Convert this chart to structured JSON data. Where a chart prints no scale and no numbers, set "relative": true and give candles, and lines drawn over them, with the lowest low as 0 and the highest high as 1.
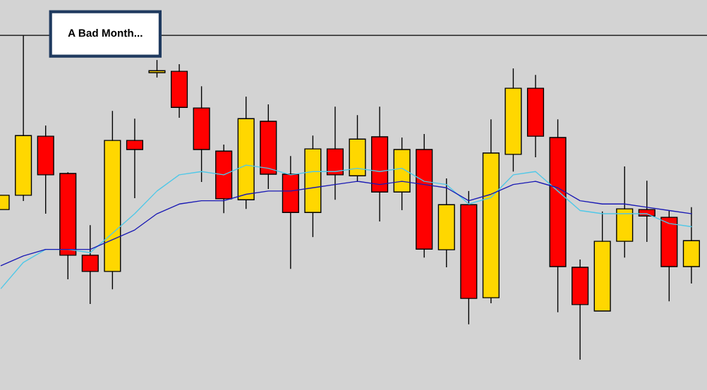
{
  "chart_data": {
    "type": "candlestick",
    "relative": true,
    "categories": [
      null,
      null,
      null,
      null,
      null,
      null,
      null,
      null,
      null,
      null,
      null,
      null,
      null,
      null,
      null,
      null,
      null,
      null,
      null,
      null,
      null,
      null,
      null,
      null,
      null,
      null,
      null,
      null,
      null,
      null,
      null,
      null
    ],
    "ohlc": [
      [
        0.463,
        0.507,
        0.463,
        0.507
      ],
      [
        0.507,
        1.0,
        0.489,
        0.691
      ],
      [
        0.689,
        0.722,
        0.45,
        0.57
      ],
      [
        0.574,
        0.578,
        0.248,
        0.322
      ],
      [
        0.322,
        0.415,
        0.172,
        0.272
      ],
      [
        0.272,
        0.767,
        0.217,
        0.676
      ],
      [
        0.676,
        0.743,
        0.498,
        0.648
      ],
      [
        0.885,
        0.924,
        0.87,
        0.891
      ],
      [
        0.889,
        0.911,
        0.746,
        0.778
      ],
      [
        0.776,
        0.843,
        0.548,
        0.648
      ],
      [
        0.643,
        0.663,
        0.452,
        0.496
      ],
      [
        0.493,
        0.811,
        0.465,
        0.743
      ],
      [
        0.735,
        0.787,
        0.526,
        0.572
      ],
      [
        0.572,
        0.628,
        0.28,
        0.454
      ],
      [
        0.454,
        0.691,
        0.378,
        0.65
      ],
      [
        0.65,
        0.78,
        0.493,
        0.57
      ],
      [
        0.567,
        0.754,
        0.548,
        0.68
      ],
      [
        0.687,
        0.78,
        0.426,
        0.517
      ],
      [
        0.517,
        0.685,
        0.461,
        0.648
      ],
      [
        0.648,
        0.696,
        0.315,
        0.341
      ],
      [
        0.339,
        0.559,
        0.285,
        0.478
      ],
      [
        0.478,
        0.52,
        0.109,
        0.189
      ],
      [
        0.191,
        0.741,
        0.174,
        0.637
      ],
      [
        0.633,
        0.898,
        0.58,
        0.837
      ],
      [
        0.837,
        0.878,
        0.624,
        0.689
      ],
      [
        0.685,
        0.741,
        0.146,
        0.287
      ],
      [
        0.285,
        0.309,
        0.0,
        0.17
      ],
      [
        0.15,
        0.457,
        0.15,
        0.365
      ],
      [
        0.365,
        0.596,
        0.315,
        0.465
      ],
      [
        0.463,
        0.552,
        0.363,
        0.443
      ],
      [
        0.439,
        0.459,
        0.18,
        0.287
      ],
      [
        0.287,
        0.47,
        0.235,
        0.367
      ]
    ],
    "colors": [
      "#ffd700",
      "#ffd700",
      "#ff0000",
      "#ff0000",
      "#ff0000",
      "#ffd700",
      "#ff0000",
      "#ffd700",
      "#ff0000",
      "#ff0000",
      "#ff0000",
      "#ffd700",
      "#ff0000",
      "#ff0000",
      "#ffd700",
      "#ff0000",
      "#ffd700",
      "#ff0000",
      "#ffd700",
      "#ff0000",
      "#ffd700",
      "#ff0000",
      "#ffd700",
      "#ffd700",
      "#ff0000",
      "#ff0000",
      "#ff0000",
      "#ffd700",
      "#ffd700",
      "#ff0000",
      "#ff0000",
      "#ffd700"
    ],
    "series": [
      {
        "type": "line",
        "color": "#4fc8e8",
        "values": [
          0.22,
          0.3,
          0.34,
          0.34,
          0.33,
          0.39,
          0.45,
          0.52,
          0.57,
          0.58,
          0.57,
          0.6,
          0.59,
          0.57,
          0.58,
          0.58,
          0.59,
          0.58,
          0.59,
          0.55,
          0.54,
          0.48,
          0.5,
          0.57,
          0.58,
          0.52,
          0.46,
          0.45,
          0.45,
          0.45,
          0.42,
          0.41
        ]
      },
      {
        "type": "line",
        "color": "#1a1ab4",
        "values": [
          0.29,
          0.32,
          0.34,
          0.34,
          0.34,
          0.37,
          0.4,
          0.45,
          0.48,
          0.49,
          0.49,
          0.51,
          0.52,
          0.52,
          0.53,
          0.54,
          0.55,
          0.54,
          0.55,
          0.54,
          0.53,
          0.49,
          0.51,
          0.54,
          0.55,
          0.53,
          0.49,
          0.48,
          0.48,
          0.47,
          0.46,
          0.45
        ]
      }
    ],
    "ref_lines": [
      {
        "axis": "y",
        "value": 1.0,
        "color": "#000000"
      }
    ],
    "annotations": [
      "A Bad Month..."
    ]
  }
}
